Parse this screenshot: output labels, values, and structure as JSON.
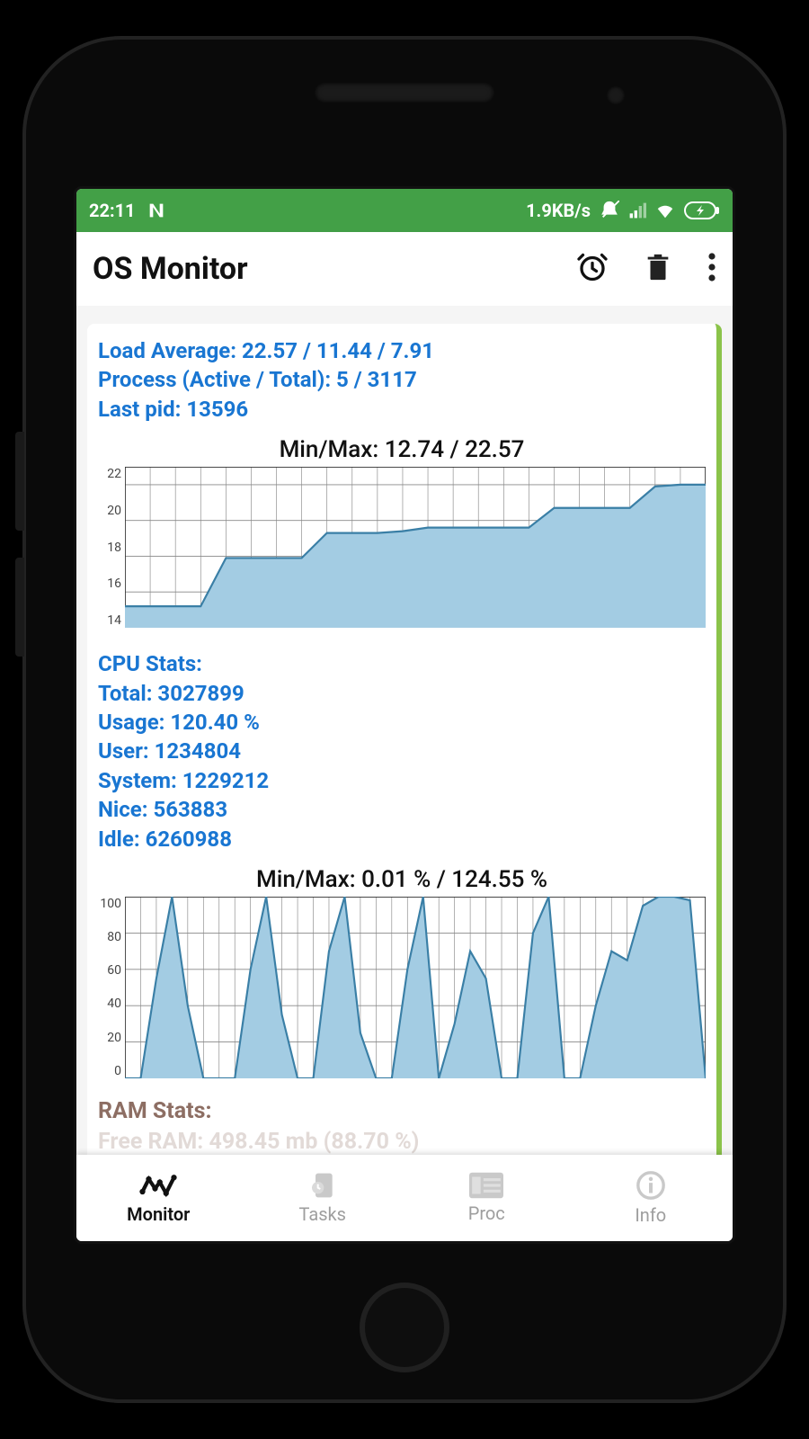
{
  "statusbar": {
    "time": "22:11",
    "network_speed": "1.9KB/s",
    "bg_color": "#43a047",
    "text_color": "#ffffff"
  },
  "appbar": {
    "title": "OS Monitor"
  },
  "load": {
    "line1": "Load Average: 22.57 / 11.44 / 7.91",
    "line2": "Process (Active / Total): 5 / 3117",
    "line3": "Last pid: 13596",
    "chart": {
      "type": "area",
      "title": "Min/Max: 12.74 / 22.57",
      "ylim": [
        14,
        23
      ],
      "yticks": [
        14,
        16,
        18,
        20,
        22
      ],
      "values": [
        15.2,
        15.2,
        15.2,
        15.2,
        17.9,
        17.9,
        17.9,
        17.9,
        19.3,
        19.3,
        19.3,
        19.4,
        19.6,
        19.6,
        19.6,
        19.6,
        19.6,
        20.7,
        20.7,
        20.7,
        20.7,
        21.9,
        22.0,
        22.0
      ],
      "fill_color": "#a3cce3",
      "line_color": "#3a7fa6",
      "grid_color": "#888888",
      "grid_major_color": "#333333",
      "bg_color": "#ffffff",
      "label_fontsize": 14
    }
  },
  "cpu": {
    "header": "CPU Stats:",
    "lines": {
      "total": "Total: 3027899",
      "usage": "Usage: 120.40 %",
      "user": "User: 1234804",
      "system": "System: 1229212",
      "nice": "Nice: 563883",
      "idle": "Idle: 6260988"
    },
    "chart": {
      "type": "area",
      "title": "Min/Max: 0.01 % / 124.55 %",
      "ylim": [
        0,
        100
      ],
      "yticks": [
        0,
        20,
        40,
        60,
        80,
        100
      ],
      "values": [
        0,
        0,
        55,
        100,
        40,
        0,
        0,
        0,
        60,
        100,
        35,
        0,
        0,
        70,
        100,
        25,
        0,
        0,
        60,
        100,
        0,
        30,
        70,
        55,
        0,
        0,
        80,
        100,
        0,
        0,
        40,
        70,
        65,
        95,
        100,
        100,
        98,
        0
      ],
      "fill_color": "#a3cce3",
      "line_color": "#3a7fa6",
      "grid_color": "#888888",
      "grid_major_color": "#333333",
      "bg_color": "#ffffff",
      "label_fontsize": 14
    }
  },
  "ram": {
    "header": "RAM Stats:"
  },
  "bottomnav": {
    "items": [
      {
        "label": "Monitor",
        "active": true
      },
      {
        "label": "Tasks",
        "active": false
      },
      {
        "label": "Proc",
        "active": false
      },
      {
        "label": "Info",
        "active": false
      }
    ],
    "active_color": "#111111",
    "inactive_color": "#9e9e9e"
  },
  "colors": {
    "blue": "#1976d2",
    "brown": "#8d6e63",
    "card_accent": "#8bc34a"
  }
}
